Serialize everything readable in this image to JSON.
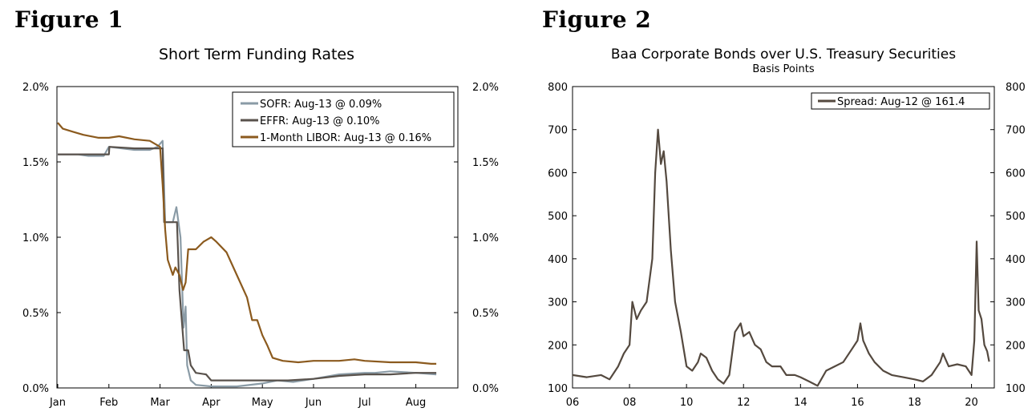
{
  "figures": [
    {
      "label": "Figure 1"
    },
    {
      "label": "Figure 2"
    }
  ],
  "chart_data": [
    {
      "type": "line",
      "title": "Short Term Funding Rates",
      "x_tick_labels": [
        "Jan",
        "Feb",
        "Mar",
        "Apr",
        "May",
        "Jun",
        "Jul",
        "Aug"
      ],
      "y_tick_labels": [
        "2.0%",
        "1.5%",
        "1.0%",
        "0.5%",
        "0.0%"
      ],
      "ylim": [
        0,
        2.0
      ],
      "x_unit": "month index (Jan = 0)",
      "grid": false,
      "legend_position": "top-right",
      "series": [
        {
          "name": "SOFR: Aug-13 @ 0.09%",
          "color": "#8a9ba6",
          "points": [
            [
              0,
              1.55
            ],
            [
              0.4,
              1.55
            ],
            [
              0.6,
              1.54
            ],
            [
              0.9,
              1.54
            ],
            [
              1.0,
              1.6
            ],
            [
              1.5,
              1.58
            ],
            [
              1.8,
              1.58
            ],
            [
              1.95,
              1.6
            ],
            [
              2.05,
              1.64
            ],
            [
              2.1,
              1.1
            ],
            [
              2.25,
              1.1
            ],
            [
              2.32,
              1.2
            ],
            [
              2.4,
              1.0
            ],
            [
              2.46,
              0.4
            ],
            [
              2.5,
              0.54
            ],
            [
              2.53,
              0.15
            ],
            [
              2.6,
              0.05
            ],
            [
              2.7,
              0.02
            ],
            [
              3.0,
              0.01
            ],
            [
              3.5,
              0.01
            ],
            [
              4.0,
              0.03
            ],
            [
              4.3,
              0.05
            ],
            [
              4.6,
              0.04
            ],
            [
              5.0,
              0.06
            ],
            [
              5.5,
              0.09
            ],
            [
              6.0,
              0.1
            ],
            [
              6.2,
              0.1
            ],
            [
              6.5,
              0.11
            ],
            [
              7.0,
              0.1
            ],
            [
              7.4,
              0.09
            ]
          ]
        },
        {
          "name": "EFFR: Aug-13 @ 0.10%",
          "color": "#59524c",
          "points": [
            [
              0,
              1.55
            ],
            [
              0.5,
              1.55
            ],
            [
              1.0,
              1.55
            ],
            [
              1.01,
              1.6
            ],
            [
              1.5,
              1.59
            ],
            [
              2.0,
              1.59
            ],
            [
              2.05,
              1.59
            ],
            [
              2.08,
              1.1
            ],
            [
              2.3,
              1.1
            ],
            [
              2.33,
              1.1
            ],
            [
              2.38,
              0.65
            ],
            [
              2.47,
              0.25
            ],
            [
              2.55,
              0.25
            ],
            [
              2.6,
              0.15
            ],
            [
              2.7,
              0.1
            ],
            [
              2.9,
              0.09
            ],
            [
              3.0,
              0.05
            ],
            [
              3.5,
              0.05
            ],
            [
              4.0,
              0.05
            ],
            [
              4.5,
              0.05
            ],
            [
              5.0,
              0.06
            ],
            [
              5.5,
              0.08
            ],
            [
              6.0,
              0.09
            ],
            [
              6.5,
              0.09
            ],
            [
              7.0,
              0.1
            ],
            [
              7.4,
              0.1
            ]
          ]
        },
        {
          "name": "1-Month LIBOR: Aug-13 @ 0.16%",
          "color": "#8b5a1e",
          "points": [
            [
              0,
              1.76
            ],
            [
              0.1,
              1.72
            ],
            [
              0.3,
              1.7
            ],
            [
              0.5,
              1.68
            ],
            [
              0.8,
              1.66
            ],
            [
              1.0,
              1.66
            ],
            [
              1.2,
              1.67
            ],
            [
              1.5,
              1.65
            ],
            [
              1.8,
              1.64
            ],
            [
              2.0,
              1.6
            ],
            [
              2.05,
              1.35
            ],
            [
              2.1,
              1.05
            ],
            [
              2.15,
              0.85
            ],
            [
              2.25,
              0.75
            ],
            [
              2.3,
              0.8
            ],
            [
              2.38,
              0.75
            ],
            [
              2.45,
              0.65
            ],
            [
              2.5,
              0.7
            ],
            [
              2.55,
              0.92
            ],
            [
              2.7,
              0.92
            ],
            [
              2.85,
              0.97
            ],
            [
              3.0,
              1.0
            ],
            [
              3.1,
              0.97
            ],
            [
              3.3,
              0.9
            ],
            [
              3.5,
              0.75
            ],
            [
              3.7,
              0.6
            ],
            [
              3.8,
              0.45
            ],
            [
              3.9,
              0.45
            ],
            [
              4.0,
              0.35
            ],
            [
              4.1,
              0.28
            ],
            [
              4.2,
              0.2
            ],
            [
              4.4,
              0.18
            ],
            [
              4.7,
              0.17
            ],
            [
              5.0,
              0.18
            ],
            [
              5.5,
              0.18
            ],
            [
              5.8,
              0.19
            ],
            [
              6.0,
              0.18
            ],
            [
              6.5,
              0.17
            ],
            [
              7.0,
              0.17
            ],
            [
              7.3,
              0.16
            ],
            [
              7.4,
              0.16
            ]
          ]
        }
      ]
    },
    {
      "type": "line",
      "title": "Baa Corporate Bonds over U.S. Treasury Securities",
      "subtitle": "Basis Points",
      "x_tick_labels": [
        "06",
        "08",
        "10",
        "12",
        "14",
        "16",
        "18",
        "20"
      ],
      "y_tick_labels": [
        "800",
        "700",
        "600",
        "500",
        "400",
        "300",
        "200",
        "100"
      ],
      "ylim": [
        100,
        800
      ],
      "xlim": [
        2006,
        2020.8
      ],
      "grid": false,
      "legend_position": "top-right",
      "series": [
        {
          "name": "Spread: Aug-12 @ 161.4",
          "color": "#54493f",
          "points": [
            [
              2006.0,
              130
            ],
            [
              2006.5,
              125
            ],
            [
              2007.0,
              130
            ],
            [
              2007.3,
              120
            ],
            [
              2007.6,
              150
            ],
            [
              2007.8,
              180
            ],
            [
              2008.0,
              200
            ],
            [
              2008.1,
              300
            ],
            [
              2008.25,
              260
            ],
            [
              2008.4,
              280
            ],
            [
              2008.6,
              300
            ],
            [
              2008.8,
              400
            ],
            [
              2008.9,
              600
            ],
            [
              2009.0,
              700
            ],
            [
              2009.1,
              620
            ],
            [
              2009.2,
              650
            ],
            [
              2009.3,
              580
            ],
            [
              2009.45,
              420
            ],
            [
              2009.6,
              300
            ],
            [
              2009.8,
              230
            ],
            [
              2010.0,
              150
            ],
            [
              2010.2,
              140
            ],
            [
              2010.4,
              160
            ],
            [
              2010.5,
              180
            ],
            [
              2010.7,
              170
            ],
            [
              2010.9,
              140
            ],
            [
              2011.1,
              120
            ],
            [
              2011.3,
              110
            ],
            [
              2011.5,
              130
            ],
            [
              2011.7,
              230
            ],
            [
              2011.9,
              250
            ],
            [
              2012.0,
              220
            ],
            [
              2012.2,
              230
            ],
            [
              2012.4,
              200
            ],
            [
              2012.6,
              190
            ],
            [
              2012.8,
              160
            ],
            [
              2013.0,
              150
            ],
            [
              2013.3,
              150
            ],
            [
              2013.5,
              130
            ],
            [
              2013.8,
              130
            ],
            [
              2014.0,
              125
            ],
            [
              2014.3,
              115
            ],
            [
              2014.6,
              105
            ],
            [
              2014.9,
              140
            ],
            [
              2015.2,
              150
            ],
            [
              2015.5,
              160
            ],
            [
              2015.8,
              190
            ],
            [
              2016.0,
              210
            ],
            [
              2016.1,
              250
            ],
            [
              2016.2,
              210
            ],
            [
              2016.4,
              180
            ],
            [
              2016.6,
              160
            ],
            [
              2016.9,
              140
            ],
            [
              2017.2,
              130
            ],
            [
              2017.6,
              125
            ],
            [
              2018.0,
              120
            ],
            [
              2018.3,
              115
            ],
            [
              2018.6,
              130
            ],
            [
              2018.9,
              160
            ],
            [
              2019.0,
              180
            ],
            [
              2019.2,
              150
            ],
            [
              2019.5,
              155
            ],
            [
              2019.8,
              150
            ],
            [
              2020.0,
              130
            ],
            [
              2020.1,
              210
            ],
            [
              2020.18,
              440
            ],
            [
              2020.25,
              280
            ],
            [
              2020.35,
              260
            ],
            [
              2020.45,
              200
            ],
            [
              2020.55,
              185
            ],
            [
              2020.62,
              161
            ]
          ]
        }
      ]
    }
  ]
}
